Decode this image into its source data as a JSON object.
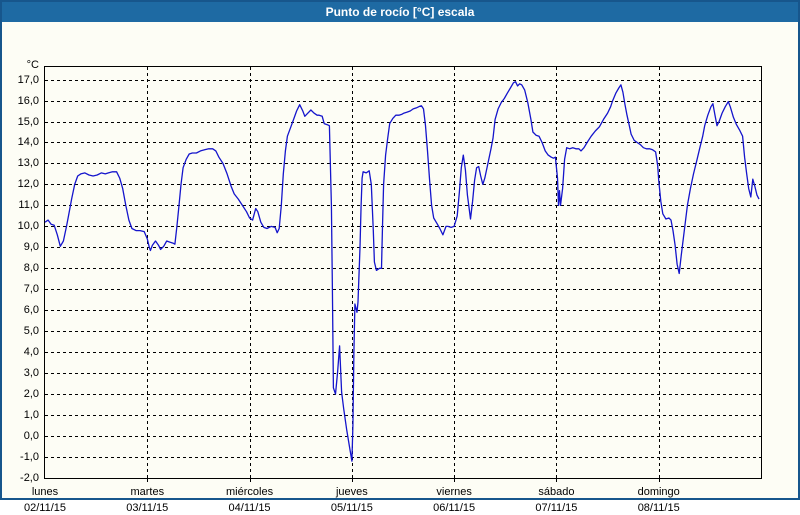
{
  "window": {
    "title": "Punto de rocío [°C] escala",
    "title_bar_color": "#1E6AA3",
    "border_color": "#17568C",
    "background_color": "#FDFDF5"
  },
  "chart_data": {
    "type": "line",
    "title": "Punto de rocío [°C] escala",
    "y_unit_label": "°C",
    "ylabel": "Punto de rocío [°C]",
    "ylim": [
      -2.0,
      17.0
    ],
    "grid": "dashed",
    "legend": "none",
    "line_color": "#1515CC",
    "y_tick_values": [
      17,
      16,
      15,
      14,
      13,
      12,
      11,
      10,
      9,
      8,
      7,
      6,
      5,
      4,
      3,
      2,
      1,
      0,
      -1,
      -2
    ],
    "y_tick_labels": [
      "17,0",
      "16,0",
      "15,0",
      "14,0",
      "13,0",
      "12,0",
      "11,0",
      "10,0",
      "9,0",
      "8,0",
      "7,0",
      "6,0",
      "5,0",
      "4,0",
      "3,0",
      "2,0",
      "1,0",
      "0,0",
      "-1,0",
      "-2,0"
    ],
    "x_days": [
      {
        "name": "lunes",
        "date": "02/11/15"
      },
      {
        "name": "martes",
        "date": "03/11/15"
      },
      {
        "name": "miércoles",
        "date": "04/11/15"
      },
      {
        "name": "jueves",
        "date": "05/11/15"
      },
      {
        "name": "viernes",
        "date": "06/11/15"
      },
      {
        "name": "sábado",
        "date": "07/11/15"
      },
      {
        "name": "domingo",
        "date": "08/11/15"
      }
    ],
    "series": [
      {
        "name": "Punto de rocío",
        "points": [
          [
            0,
            10.2
          ],
          [
            0.03,
            10.3
          ],
          [
            0.06,
            10.1
          ],
          [
            0.09,
            10.05
          ],
          [
            0.12,
            9.6
          ],
          [
            0.15,
            9.05
          ],
          [
            0.18,
            9.3
          ],
          [
            0.21,
            10.0
          ],
          [
            0.23,
            10.5
          ],
          [
            0.26,
            11.3
          ],
          [
            0.29,
            12.0
          ],
          [
            0.32,
            12.4
          ],
          [
            0.35,
            12.5
          ],
          [
            0.39,
            12.55
          ],
          [
            0.43,
            12.45
          ],
          [
            0.47,
            12.4
          ],
          [
            0.51,
            12.45
          ],
          [
            0.55,
            12.55
          ],
          [
            0.59,
            12.5
          ],
          [
            0.62,
            12.55
          ],
          [
            0.66,
            12.6
          ],
          [
            0.7,
            12.6
          ],
          [
            0.73,
            12.3
          ],
          [
            0.76,
            11.8
          ],
          [
            0.79,
            11.0
          ],
          [
            0.82,
            10.3
          ],
          [
            0.85,
            9.9
          ],
          [
            0.89,
            9.8
          ],
          [
            0.93,
            9.8
          ],
          [
            0.97,
            9.75
          ],
          [
            1.0,
            9.4
          ],
          [
            1.02,
            9.0
          ],
          [
            1.03,
            8.85
          ],
          [
            1.05,
            9.1
          ],
          [
            1.08,
            9.3
          ],
          [
            1.11,
            9.1
          ],
          [
            1.13,
            8.9
          ],
          [
            1.16,
            9.05
          ],
          [
            1.19,
            9.3
          ],
          [
            1.22,
            9.25
          ],
          [
            1.25,
            9.2
          ],
          [
            1.27,
            9.15
          ],
          [
            1.29,
            10.0
          ],
          [
            1.31,
            11.0
          ],
          [
            1.33,
            12.0
          ],
          [
            1.35,
            12.8
          ],
          [
            1.38,
            13.2
          ],
          [
            1.41,
            13.45
          ],
          [
            1.44,
            13.5
          ],
          [
            1.48,
            13.5
          ],
          [
            1.52,
            13.6
          ],
          [
            1.56,
            13.65
          ],
          [
            1.6,
            13.7
          ],
          [
            1.64,
            13.7
          ],
          [
            1.67,
            13.6
          ],
          [
            1.7,
            13.3
          ],
          [
            1.74,
            13.0
          ],
          [
            1.78,
            12.5
          ],
          [
            1.82,
            11.9
          ],
          [
            1.85,
            11.55
          ],
          [
            1.89,
            11.3
          ],
          [
            1.93,
            11.0
          ],
          [
            1.97,
            10.7
          ],
          [
            2.0,
            10.4
          ],
          [
            2.03,
            10.3
          ],
          [
            2.06,
            10.85
          ],
          [
            2.08,
            10.7
          ],
          [
            2.11,
            10.2
          ],
          [
            2.14,
            9.95
          ],
          [
            2.17,
            9.9
          ],
          [
            2.21,
            10.0
          ],
          [
            2.25,
            9.95
          ],
          [
            2.27,
            9.7
          ],
          [
            2.29,
            9.9
          ],
          [
            2.31,
            11.0
          ],
          [
            2.33,
            12.5
          ],
          [
            2.35,
            13.6
          ],
          [
            2.37,
            14.3
          ],
          [
            2.4,
            14.7
          ],
          [
            2.43,
            15.1
          ],
          [
            2.46,
            15.5
          ],
          [
            2.49,
            15.8
          ],
          [
            2.52,
            15.5
          ],
          [
            2.54,
            15.25
          ],
          [
            2.57,
            15.4
          ],
          [
            2.6,
            15.55
          ],
          [
            2.63,
            15.4
          ],
          [
            2.66,
            15.3
          ],
          [
            2.68,
            15.3
          ],
          [
            2.71,
            15.25
          ],
          [
            2.73,
            14.9
          ],
          [
            2.76,
            14.85
          ],
          [
            2.78,
            14.8
          ],
          [
            2.8,
            11.0
          ],
          [
            2.81,
            7.0
          ],
          [
            2.82,
            2.3
          ],
          [
            2.84,
            2.0
          ],
          [
            2.86,
            3.0
          ],
          [
            2.88,
            4.3
          ],
          [
            2.89,
            3.2
          ],
          [
            2.9,
            2.1
          ],
          [
            2.92,
            1.3
          ],
          [
            2.95,
            0.3
          ],
          [
            2.98,
            -0.6
          ],
          [
            3.0,
            -1.2
          ],
          [
            3.01,
            0.5
          ],
          [
            3.02,
            4.0
          ],
          [
            3.03,
            6.3
          ],
          [
            3.05,
            5.9
          ],
          [
            3.06,
            6.4
          ],
          [
            3.08,
            9.0
          ],
          [
            3.09,
            11.0
          ],
          [
            3.1,
            12.3
          ],
          [
            3.11,
            12.6
          ],
          [
            3.14,
            12.55
          ],
          [
            3.17,
            12.65
          ],
          [
            3.19,
            12.0
          ],
          [
            3.21,
            9.8
          ],
          [
            3.22,
            8.3
          ],
          [
            3.24,
            7.9
          ],
          [
            3.27,
            8.0
          ],
          [
            3.29,
            8.0
          ],
          [
            3.3,
            10.0
          ],
          [
            3.31,
            12.0
          ],
          [
            3.33,
            13.4
          ],
          [
            3.35,
            14.2
          ],
          [
            3.37,
            14.9
          ],
          [
            3.4,
            15.15
          ],
          [
            3.43,
            15.3
          ],
          [
            3.46,
            15.3
          ],
          [
            3.49,
            15.35
          ],
          [
            3.51,
            15.4
          ],
          [
            3.54,
            15.45
          ],
          [
            3.57,
            15.5
          ],
          [
            3.6,
            15.6
          ],
          [
            3.63,
            15.65
          ],
          [
            3.66,
            15.72
          ],
          [
            3.68,
            15.75
          ],
          [
            3.7,
            15.6
          ],
          [
            3.72,
            14.8
          ],
          [
            3.74,
            13.6
          ],
          [
            3.76,
            12.2
          ],
          [
            3.78,
            11.0
          ],
          [
            3.8,
            10.4
          ],
          [
            3.83,
            10.15
          ],
          [
            3.86,
            9.9
          ],
          [
            3.89,
            9.6
          ],
          [
            3.92,
            10.0
          ],
          [
            3.94,
            10.0
          ],
          [
            3.97,
            9.95
          ],
          [
            4.0,
            10.0
          ],
          [
            4.03,
            10.5
          ],
          [
            4.05,
            11.6
          ],
          [
            4.07,
            12.8
          ],
          [
            4.09,
            13.4
          ],
          [
            4.11,
            12.7
          ],
          [
            4.13,
            11.5
          ],
          [
            4.16,
            10.35
          ],
          [
            4.18,
            11.2
          ],
          [
            4.2,
            12.2
          ],
          [
            4.22,
            12.8
          ],
          [
            4.24,
            12.85
          ],
          [
            4.26,
            12.4
          ],
          [
            4.28,
            12.0
          ],
          [
            4.3,
            12.3
          ],
          [
            4.33,
            13.0
          ],
          [
            4.36,
            13.7
          ],
          [
            4.38,
            14.2
          ],
          [
            4.4,
            15.1
          ],
          [
            4.43,
            15.6
          ],
          [
            4.46,
            15.9
          ],
          [
            4.49,
            16.1
          ],
          [
            4.52,
            16.35
          ],
          [
            4.55,
            16.6
          ],
          [
            4.58,
            16.85
          ],
          [
            4.6,
            16.9
          ],
          [
            4.62,
            16.7
          ],
          [
            4.64,
            16.8
          ],
          [
            4.66,
            16.75
          ],
          [
            4.69,
            16.5
          ],
          [
            4.72,
            15.9
          ],
          [
            4.75,
            15.1
          ],
          [
            4.77,
            14.5
          ],
          [
            4.8,
            14.35
          ],
          [
            4.83,
            14.3
          ],
          [
            4.86,
            14.0
          ],
          [
            4.89,
            13.6
          ],
          [
            4.92,
            13.4
          ],
          [
            4.95,
            13.3
          ],
          [
            4.97,
            13.25
          ],
          [
            4.99,
            13.3
          ],
          [
            5.01,
            12.3
          ],
          [
            5.02,
            11.0
          ],
          [
            5.03,
            11.7
          ],
          [
            5.04,
            11.0
          ],
          [
            5.06,
            11.8
          ],
          [
            5.08,
            13.2
          ],
          [
            5.1,
            13.75
          ],
          [
            5.13,
            13.7
          ],
          [
            5.16,
            13.75
          ],
          [
            5.19,
            13.7
          ],
          [
            5.22,
            13.7
          ],
          [
            5.24,
            13.6
          ],
          [
            5.27,
            13.75
          ],
          [
            5.3,
            14.0
          ],
          [
            5.34,
            14.3
          ],
          [
            5.38,
            14.55
          ],
          [
            5.42,
            14.75
          ],
          [
            5.46,
            15.1
          ],
          [
            5.5,
            15.4
          ],
          [
            5.53,
            15.7
          ],
          [
            5.55,
            16.0
          ],
          [
            5.58,
            16.35
          ],
          [
            5.61,
            16.6
          ],
          [
            5.63,
            16.75
          ],
          [
            5.65,
            16.4
          ],
          [
            5.67,
            15.8
          ],
          [
            5.69,
            15.3
          ],
          [
            5.71,
            14.85
          ],
          [
            5.73,
            14.4
          ],
          [
            5.76,
            14.1
          ],
          [
            5.79,
            14.0
          ],
          [
            5.82,
            13.9
          ],
          [
            5.85,
            13.75
          ],
          [
            5.88,
            13.7
          ],
          [
            5.91,
            13.7
          ],
          [
            5.94,
            13.65
          ],
          [
            5.97,
            13.55
          ],
          [
            5.99,
            12.9
          ],
          [
            6.0,
            12.2
          ],
          [
            6.02,
            11.2
          ],
          [
            6.04,
            10.6
          ],
          [
            6.07,
            10.35
          ],
          [
            6.1,
            10.4
          ],
          [
            6.12,
            10.3
          ],
          [
            6.14,
            9.8
          ],
          [
            6.16,
            9.1
          ],
          [
            6.18,
            8.2
          ],
          [
            6.2,
            7.75
          ],
          [
            6.22,
            8.6
          ],
          [
            6.25,
            9.8
          ],
          [
            6.28,
            11.0
          ],
          [
            6.31,
            11.8
          ],
          [
            6.34,
            12.5
          ],
          [
            6.37,
            13.1
          ],
          [
            6.4,
            13.7
          ],
          [
            6.43,
            14.3
          ],
          [
            6.45,
            14.8
          ],
          [
            6.48,
            15.3
          ],
          [
            6.51,
            15.7
          ],
          [
            6.53,
            15.85
          ],
          [
            6.55,
            15.3
          ],
          [
            6.57,
            14.8
          ],
          [
            6.59,
            15.0
          ],
          [
            6.62,
            15.4
          ],
          [
            6.65,
            15.7
          ],
          [
            6.68,
            15.95
          ],
          [
            6.7,
            15.7
          ],
          [
            6.73,
            15.2
          ],
          [
            6.76,
            14.85
          ],
          [
            6.79,
            14.6
          ],
          [
            6.82,
            14.3
          ],
          [
            6.84,
            13.3
          ],
          [
            6.86,
            12.5
          ],
          [
            6.88,
            11.8
          ],
          [
            6.9,
            11.4
          ],
          [
            6.92,
            12.25
          ],
          [
            6.94,
            11.9
          ],
          [
            6.96,
            11.5
          ],
          [
            6.98,
            11.3
          ]
        ]
      }
    ]
  }
}
